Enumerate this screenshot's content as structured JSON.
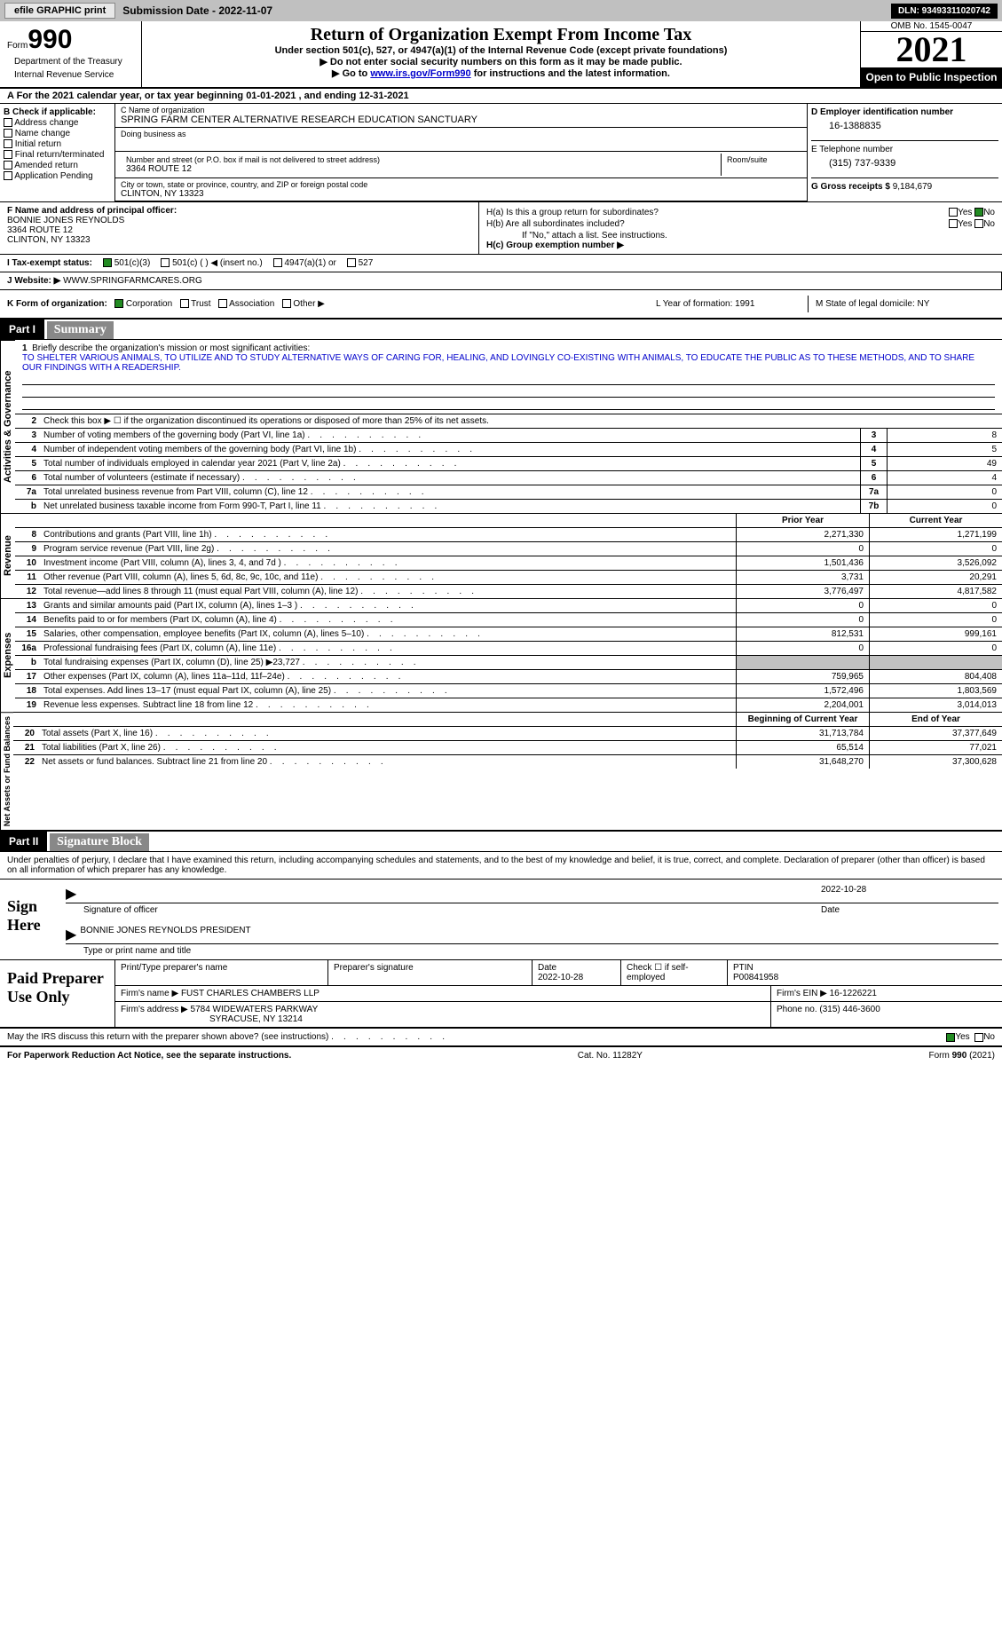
{
  "top": {
    "efile": "efile GRAPHIC print",
    "sub_label": "Submission Date - 2022-11-07",
    "dln": "DLN: 93493311020742"
  },
  "header": {
    "form_label": "Form",
    "form_no": "990",
    "dept": "Department of the Treasury",
    "irs": "Internal Revenue Service",
    "title": "Return of Organization Exempt From Income Tax",
    "sub1": "Under section 501(c), 527, or 4947(a)(1) of the Internal Revenue Code (except private foundations)",
    "sub2": "▶ Do not enter social security numbers on this form as it may be made public.",
    "sub3_pre": "▶ Go to ",
    "sub3_link": "www.irs.gov/Form990",
    "sub3_post": " for instructions and the latest information.",
    "omb": "OMB No. 1545-0047",
    "year": "2021",
    "open": "Open to Public Inspection"
  },
  "rowA": "A For the 2021 calendar year, or tax year beginning 01-01-2021    , and ending 12-31-2021",
  "sectionB": {
    "b_label": "B Check if applicable:",
    "items": [
      "Address change",
      "Name change",
      "Initial return",
      "Final return/terminated",
      "Amended return",
      "Application Pending"
    ],
    "c_name_label": "C Name of organization",
    "org_name": "SPRING FARM CENTER ALTERNATIVE RESEARCH EDUCATION SANCTUARY",
    "dba_label": "Doing business as",
    "addr_label": "Number and street (or P.O. box if mail is not delivered to street address)",
    "addr": "3364 ROUTE 12",
    "room_label": "Room/suite",
    "city_label": "City or town, state or province, country, and ZIP or foreign postal code",
    "city": "CLINTON, NY  13323",
    "d_label": "D Employer identification number",
    "ein": "16-1388835",
    "e_label": "E Telephone number",
    "tel": "(315) 737-9339",
    "g_label": "G Gross receipts $",
    "gross": "9,184,679"
  },
  "sectionF": {
    "f_label": "F Name and address of principal officer:",
    "officer": "BONNIE JONES REYNOLDS",
    "addr1": "3364 ROUTE 12",
    "addr2": "CLINTON, NY  13323",
    "ha": "H(a)  Is this a group return for subordinates?",
    "hb": "H(b)  Are all subordinates included?",
    "hb_note": "If \"No,\" attach a list. See instructions.",
    "hc": "H(c)  Group exemption number ▶",
    "yes": "Yes",
    "no": "No"
  },
  "rowI": {
    "label": "I Tax-exempt status:",
    "o1": "501(c)(3)",
    "o2": "501(c) (  ) ◀ (insert no.)",
    "o3": "4947(a)(1) or",
    "o4": "527"
  },
  "rowJ": {
    "label": "J Website: ▶",
    "site": "WWW.SPRINGFARMCARES.ORG"
  },
  "rowK": {
    "label": "K Form of organization:",
    "o1": "Corporation",
    "o2": "Trust",
    "o3": "Association",
    "o4": "Other ▶",
    "l": "L Year of formation: 1991",
    "m": "M State of legal domicile: NY"
  },
  "part1": {
    "hdr": "Part I",
    "title": "Summary",
    "q1": "Briefly describe the organization's mission or most significant activities:",
    "mission": "TO SHELTER VARIOUS ANIMALS, TO UTILIZE AND TO STUDY ALTERNATIVE WAYS OF CARING FOR, HEALING, AND LOVINGLY CO-EXISTING WITH ANIMALS, TO EDUCATE THE PUBLIC AS TO THESE METHODS, AND TO SHARE OUR FINDINGS WITH A READERSHIP.",
    "q2": "Check this box ▶ ☐ if the organization discontinued its operations or disposed of more than 25% of its net assets.",
    "vert1": "Activities & Governance",
    "vert2": "Revenue",
    "vert3": "Expenses",
    "vert4": "Net Assets or Fund Balances",
    "lines_gov": [
      {
        "n": "3",
        "t": "Number of voting members of the governing body (Part VI, line 1a)",
        "b": "3",
        "v": "8"
      },
      {
        "n": "4",
        "t": "Number of independent voting members of the governing body (Part VI, line 1b)",
        "b": "4",
        "v": "5"
      },
      {
        "n": "5",
        "t": "Total number of individuals employed in calendar year 2021 (Part V, line 2a)",
        "b": "5",
        "v": "49"
      },
      {
        "n": "6",
        "t": "Total number of volunteers (estimate if necessary)",
        "b": "6",
        "v": "4"
      },
      {
        "n": "7a",
        "t": "Total unrelated business revenue from Part VIII, column (C), line 12",
        "b": "7a",
        "v": "0"
      },
      {
        "n": "b",
        "t": "Net unrelated business taxable income from Form 990-T, Part I, line 11",
        "b": "7b",
        "v": "0"
      }
    ],
    "hdr_prior": "Prior Year",
    "hdr_curr": "Current Year",
    "lines_rev": [
      {
        "n": "8",
        "t": "Contributions and grants (Part VIII, line 1h)",
        "p": "2,271,330",
        "c": "1,271,199"
      },
      {
        "n": "9",
        "t": "Program service revenue (Part VIII, line 2g)",
        "p": "0",
        "c": "0"
      },
      {
        "n": "10",
        "t": "Investment income (Part VIII, column (A), lines 3, 4, and 7d )",
        "p": "1,501,436",
        "c": "3,526,092"
      },
      {
        "n": "11",
        "t": "Other revenue (Part VIII, column (A), lines 5, 6d, 8c, 9c, 10c, and 11e)",
        "p": "3,731",
        "c": "20,291"
      },
      {
        "n": "12",
        "t": "Total revenue—add lines 8 through 11 (must equal Part VIII, column (A), line 12)",
        "p": "3,776,497",
        "c": "4,817,582"
      }
    ],
    "lines_exp": [
      {
        "n": "13",
        "t": "Grants and similar amounts paid (Part IX, column (A), lines 1–3 )",
        "p": "0",
        "c": "0"
      },
      {
        "n": "14",
        "t": "Benefits paid to or for members (Part IX, column (A), line 4)",
        "p": "0",
        "c": "0"
      },
      {
        "n": "15",
        "t": "Salaries, other compensation, employee benefits (Part IX, column (A), lines 5–10)",
        "p": "812,531",
        "c": "999,161"
      },
      {
        "n": "16a",
        "t": "Professional fundraising fees (Part IX, column (A), line 11e)",
        "p": "0",
        "c": "0"
      },
      {
        "n": "b",
        "t": "Total fundraising expenses (Part IX, column (D), line 25) ▶23,727",
        "p": "",
        "c": "",
        "gray": true
      },
      {
        "n": "17",
        "t": "Other expenses (Part IX, column (A), lines 11a–11d, 11f–24e)",
        "p": "759,965",
        "c": "804,408"
      },
      {
        "n": "18",
        "t": "Total expenses. Add lines 13–17 (must equal Part IX, column (A), line 25)",
        "p": "1,572,496",
        "c": "1,803,569"
      },
      {
        "n": "19",
        "t": "Revenue less expenses. Subtract line 18 from line 12",
        "p": "2,204,001",
        "c": "3,014,013"
      }
    ],
    "hdr_beg": "Beginning of Current Year",
    "hdr_end": "End of Year",
    "lines_net": [
      {
        "n": "20",
        "t": "Total assets (Part X, line 16)",
        "p": "31,713,784",
        "c": "37,377,649"
      },
      {
        "n": "21",
        "t": "Total liabilities (Part X, line 26)",
        "p": "65,514",
        "c": "77,021"
      },
      {
        "n": "22",
        "t": "Net assets or fund balances. Subtract line 21 from line 20",
        "p": "31,648,270",
        "c": "37,300,628"
      }
    ]
  },
  "part2": {
    "hdr": "Part II",
    "title": "Signature Block",
    "text": "Under penalties of perjury, I declare that I have examined this return, including accompanying schedules and statements, and to the best of my knowledge and belief, it is true, correct, and complete. Declaration of preparer (other than officer) is based on all information of which preparer has any knowledge.",
    "sign": "Sign Here",
    "sig_officer": "Signature of officer",
    "sig_date": "2022-10-28",
    "sig_name": "BONNIE JONES REYNOLDS  PRESIDENT",
    "sig_name_label": "Type or print name and title",
    "date_label": "Date",
    "paid": "Paid Preparer Use Only",
    "print_label": "Print/Type preparer's name",
    "prep_sig": "Preparer's signature",
    "prep_date": "Date\n2022-10-28",
    "check_if": "Check ☐ if self-employed",
    "ptin_label": "PTIN",
    "ptin": "P00841958",
    "firm_name_label": "Firm's name    ▶",
    "firm_name": "FUST CHARLES CHAMBERS LLP",
    "firm_ein_label": "Firm's EIN ▶",
    "firm_ein": "16-1226221",
    "firm_addr_label": "Firm's address ▶",
    "firm_addr1": "5784 WIDEWATERS PARKWAY",
    "firm_addr2": "SYRACUSE, NY  13214",
    "phone_label": "Phone no.",
    "phone": "(315) 446-3600"
  },
  "footer": {
    "q": "May the IRS discuss this return with the preparer shown above? (see instructions)",
    "yes": "Yes",
    "no": "No",
    "paperwork": "For Paperwork Reduction Act Notice, see the separate instructions.",
    "cat": "Cat. No. 11282Y",
    "form": "Form 990 (2021)"
  }
}
